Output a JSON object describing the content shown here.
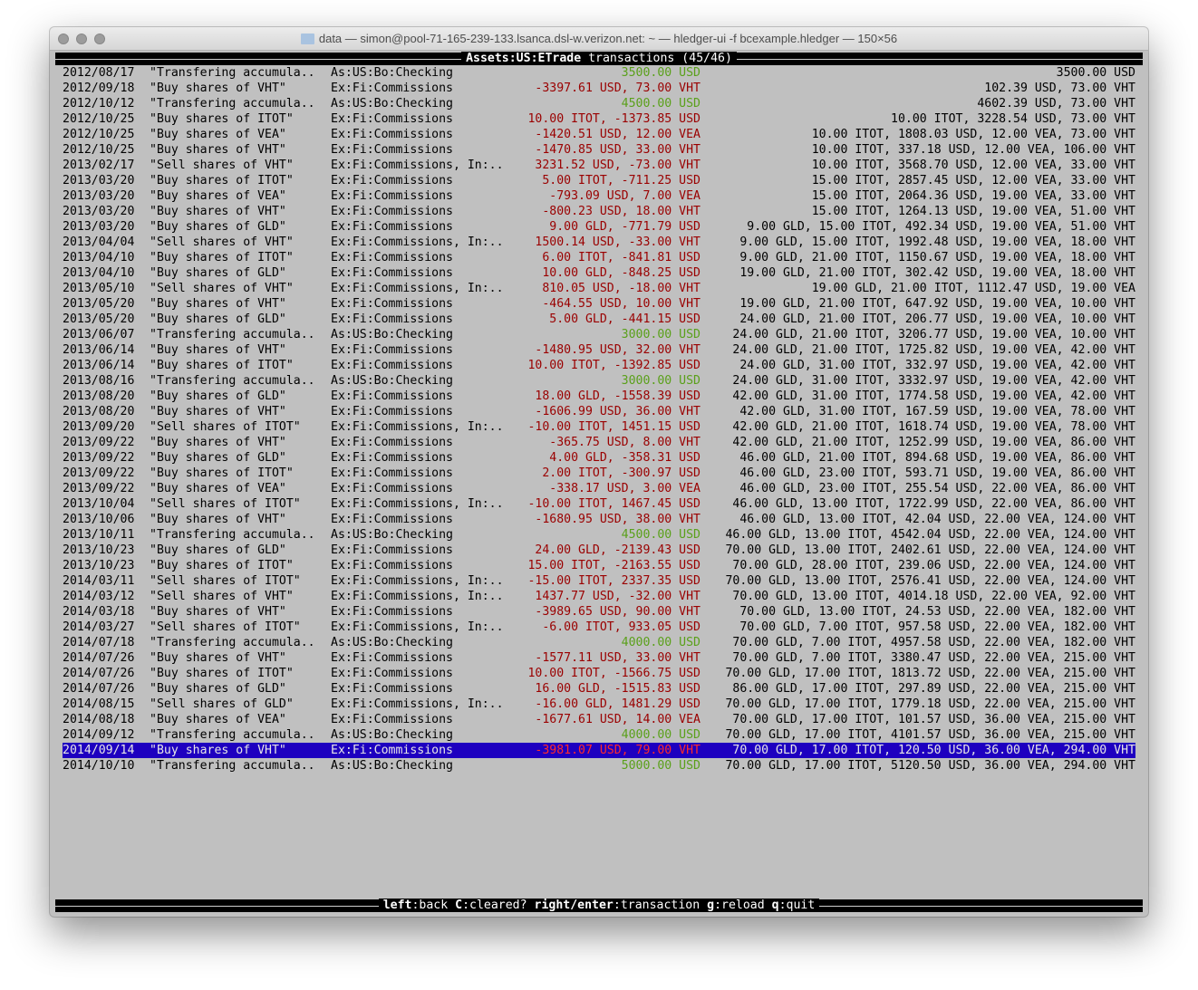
{
  "window": {
    "title": "data — simon@pool-71-165-239-133.lsanca.dsl-w.verizon.net: ~ — hledger-ui -f bcexample.hledger — 150×56",
    "icon": "folder-icon"
  },
  "header": {
    "account": "Assets:US:ETrade",
    "suffix": " transactions (45/46)"
  },
  "colors": {
    "positive": "#5aa01a",
    "negative": "#9a0000",
    "selection": "#1e00c0",
    "background": "#c0c0c0"
  },
  "selected_index": 44,
  "rows": [
    [
      "2012/08/17",
      "\"Transfering accumula..",
      "As:US:Bo:Checking",
      "3500.00 USD",
      "3500.00 USD",
      "pos"
    ],
    [
      "2012/09/18",
      "\"Buy shares of VHT\"",
      "Ex:Fi:Commissions",
      "-3397.61 USD, 73.00 VHT",
      "102.39 USD, 73.00 VHT",
      "neg"
    ],
    [
      "2012/10/12",
      "\"Transfering accumula..",
      "As:US:Bo:Checking",
      "4500.00 USD",
      "4602.39 USD, 73.00 VHT",
      "pos"
    ],
    [
      "2012/10/25",
      "\"Buy shares of ITOT\"",
      "Ex:Fi:Commissions",
      "10.00 ITOT, -1373.85 USD",
      "10.00 ITOT, 3228.54 USD, 73.00 VHT",
      "neg"
    ],
    [
      "2012/10/25",
      "\"Buy shares of VEA\"",
      "Ex:Fi:Commissions",
      "-1420.51 USD, 12.00 VEA",
      "10.00 ITOT, 1808.03 USD, 12.00 VEA, 73.00 VHT",
      "neg"
    ],
    [
      "2012/10/25",
      "\"Buy shares of VHT\"",
      "Ex:Fi:Commissions",
      "-1470.85 USD, 33.00 VHT",
      "10.00 ITOT, 337.18 USD, 12.00 VEA, 106.00 VHT",
      "neg"
    ],
    [
      "2013/02/17",
      "\"Sell shares of VHT\"",
      "Ex:Fi:Commissions, In:..",
      "3231.52 USD, -73.00 VHT",
      "10.00 ITOT, 3568.70 USD, 12.00 VEA, 33.00 VHT",
      "neg"
    ],
    [
      "2013/03/20",
      "\"Buy shares of ITOT\"",
      "Ex:Fi:Commissions",
      "5.00 ITOT, -711.25 USD",
      "15.00 ITOT, 2857.45 USD, 12.00 VEA, 33.00 VHT",
      "neg"
    ],
    [
      "2013/03/20",
      "\"Buy shares of VEA\"",
      "Ex:Fi:Commissions",
      "-793.09 USD, 7.00 VEA",
      "15.00 ITOT, 2064.36 USD, 19.00 VEA, 33.00 VHT",
      "neg"
    ],
    [
      "2013/03/20",
      "\"Buy shares of VHT\"",
      "Ex:Fi:Commissions",
      "-800.23 USD, 18.00 VHT",
      "15.00 ITOT, 1264.13 USD, 19.00 VEA, 51.00 VHT",
      "neg"
    ],
    [
      "2013/03/20",
      "\"Buy shares of GLD\"",
      "Ex:Fi:Commissions",
      "9.00 GLD, -771.79 USD",
      "9.00 GLD, 15.00 ITOT, 492.34 USD, 19.00 VEA, 51.00 VHT",
      "neg"
    ],
    [
      "2013/04/04",
      "\"Sell shares of VHT\"",
      "Ex:Fi:Commissions, In:..",
      "1500.14 USD, -33.00 VHT",
      "9.00 GLD, 15.00 ITOT, 1992.48 USD, 19.00 VEA, 18.00 VHT",
      "neg"
    ],
    [
      "2013/04/10",
      "\"Buy shares of ITOT\"",
      "Ex:Fi:Commissions",
      "6.00 ITOT, -841.81 USD",
      "9.00 GLD, 21.00 ITOT, 1150.67 USD, 19.00 VEA, 18.00 VHT",
      "neg"
    ],
    [
      "2013/04/10",
      "\"Buy shares of GLD\"",
      "Ex:Fi:Commissions",
      "10.00 GLD, -848.25 USD",
      "19.00 GLD, 21.00 ITOT, 302.42 USD, 19.00 VEA, 18.00 VHT",
      "neg"
    ],
    [
      "2013/05/10",
      "\"Sell shares of VHT\"",
      "Ex:Fi:Commissions, In:..",
      "810.05 USD, -18.00 VHT",
      "19.00 GLD, 21.00 ITOT, 1112.47 USD, 19.00 VEA",
      "neg"
    ],
    [
      "2013/05/20",
      "\"Buy shares of VHT\"",
      "Ex:Fi:Commissions",
      "-464.55 USD, 10.00 VHT",
      "19.00 GLD, 21.00 ITOT, 647.92 USD, 19.00 VEA, 10.00 VHT",
      "neg"
    ],
    [
      "2013/05/20",
      "\"Buy shares of GLD\"",
      "Ex:Fi:Commissions",
      "5.00 GLD, -441.15 USD",
      "24.00 GLD, 21.00 ITOT, 206.77 USD, 19.00 VEA, 10.00 VHT",
      "neg"
    ],
    [
      "2013/06/07",
      "\"Transfering accumula..",
      "As:US:Bo:Checking",
      "3000.00 USD",
      "24.00 GLD, 21.00 ITOT, 3206.77 USD, 19.00 VEA, 10.00 VHT",
      "pos"
    ],
    [
      "2013/06/14",
      "\"Buy shares of VHT\"",
      "Ex:Fi:Commissions",
      "-1480.95 USD, 32.00 VHT",
      "24.00 GLD, 21.00 ITOT, 1725.82 USD, 19.00 VEA, 42.00 VHT",
      "neg"
    ],
    [
      "2013/06/14",
      "\"Buy shares of ITOT\"",
      "Ex:Fi:Commissions",
      "10.00 ITOT, -1392.85 USD",
      "24.00 GLD, 31.00 ITOT, 332.97 USD, 19.00 VEA, 42.00 VHT",
      "neg"
    ],
    [
      "2013/08/16",
      "\"Transfering accumula..",
      "As:US:Bo:Checking",
      "3000.00 USD",
      "24.00 GLD, 31.00 ITOT, 3332.97 USD, 19.00 VEA, 42.00 VHT",
      "pos"
    ],
    [
      "2013/08/20",
      "\"Buy shares of GLD\"",
      "Ex:Fi:Commissions",
      "18.00 GLD, -1558.39 USD",
      "42.00 GLD, 31.00 ITOT, 1774.58 USD, 19.00 VEA, 42.00 VHT",
      "neg"
    ],
    [
      "2013/08/20",
      "\"Buy shares of VHT\"",
      "Ex:Fi:Commissions",
      "-1606.99 USD, 36.00 VHT",
      "42.00 GLD, 31.00 ITOT, 167.59 USD, 19.00 VEA, 78.00 VHT",
      "neg"
    ],
    [
      "2013/09/20",
      "\"Sell shares of ITOT\"",
      "Ex:Fi:Commissions, In:..",
      "-10.00 ITOT, 1451.15 USD",
      "42.00 GLD, 21.00 ITOT, 1618.74 USD, 19.00 VEA, 78.00 VHT",
      "neg"
    ],
    [
      "2013/09/22",
      "\"Buy shares of VHT\"",
      "Ex:Fi:Commissions",
      "-365.75 USD, 8.00 VHT",
      "42.00 GLD, 21.00 ITOT, 1252.99 USD, 19.00 VEA, 86.00 VHT",
      "neg"
    ],
    [
      "2013/09/22",
      "\"Buy shares of GLD\"",
      "Ex:Fi:Commissions",
      "4.00 GLD, -358.31 USD",
      "46.00 GLD, 21.00 ITOT, 894.68 USD, 19.00 VEA, 86.00 VHT",
      "neg"
    ],
    [
      "2013/09/22",
      "\"Buy shares of ITOT\"",
      "Ex:Fi:Commissions",
      "2.00 ITOT, -300.97 USD",
      "46.00 GLD, 23.00 ITOT, 593.71 USD, 19.00 VEA, 86.00 VHT",
      "neg"
    ],
    [
      "2013/09/22",
      "\"Buy shares of VEA\"",
      "Ex:Fi:Commissions",
      "-338.17 USD, 3.00 VEA",
      "46.00 GLD, 23.00 ITOT, 255.54 USD, 22.00 VEA, 86.00 VHT",
      "neg"
    ],
    [
      "2013/10/04",
      "\"Sell shares of ITOT\"",
      "Ex:Fi:Commissions, In:..",
      "-10.00 ITOT, 1467.45 USD",
      "46.00 GLD, 13.00 ITOT, 1722.99 USD, 22.00 VEA, 86.00 VHT",
      "neg"
    ],
    [
      "2013/10/06",
      "\"Buy shares of VHT\"",
      "Ex:Fi:Commissions",
      "-1680.95 USD, 38.00 VHT",
      "46.00 GLD, 13.00 ITOT, 42.04 USD, 22.00 VEA, 124.00 VHT",
      "neg"
    ],
    [
      "2013/10/11",
      "\"Transfering accumula..",
      "As:US:Bo:Checking",
      "4500.00 USD",
      "46.00 GLD, 13.00 ITOT, 4542.04 USD, 22.00 VEA, 124.00 VHT",
      "pos"
    ],
    [
      "2013/10/23",
      "\"Buy shares of GLD\"",
      "Ex:Fi:Commissions",
      "24.00 GLD, -2139.43 USD",
      "70.00 GLD, 13.00 ITOT, 2402.61 USD, 22.00 VEA, 124.00 VHT",
      "neg"
    ],
    [
      "2013/10/23",
      "\"Buy shares of ITOT\"",
      "Ex:Fi:Commissions",
      "15.00 ITOT, -2163.55 USD",
      "70.00 GLD, 28.00 ITOT, 239.06 USD, 22.00 VEA, 124.00 VHT",
      "neg"
    ],
    [
      "2014/03/11",
      "\"Sell shares of ITOT\"",
      "Ex:Fi:Commissions, In:..",
      "-15.00 ITOT, 2337.35 USD",
      "70.00 GLD, 13.00 ITOT, 2576.41 USD, 22.00 VEA, 124.00 VHT",
      "neg"
    ],
    [
      "2014/03/12",
      "\"Sell shares of VHT\"",
      "Ex:Fi:Commissions, In:..",
      "1437.77 USD, -32.00 VHT",
      "70.00 GLD, 13.00 ITOT, 4014.18 USD, 22.00 VEA, 92.00 VHT",
      "neg"
    ],
    [
      "2014/03/18",
      "\"Buy shares of VHT\"",
      "Ex:Fi:Commissions",
      "-3989.65 USD, 90.00 VHT",
      "70.00 GLD, 13.00 ITOT, 24.53 USD, 22.00 VEA, 182.00 VHT",
      "neg"
    ],
    [
      "2014/03/27",
      "\"Sell shares of ITOT\"",
      "Ex:Fi:Commissions, In:..",
      "-6.00 ITOT, 933.05 USD",
      "70.00 GLD, 7.00 ITOT, 957.58 USD, 22.00 VEA, 182.00 VHT",
      "neg"
    ],
    [
      "2014/07/18",
      "\"Transfering accumula..",
      "As:US:Bo:Checking",
      "4000.00 USD",
      "70.00 GLD, 7.00 ITOT, 4957.58 USD, 22.00 VEA, 182.00 VHT",
      "pos"
    ],
    [
      "2014/07/26",
      "\"Buy shares of VHT\"",
      "Ex:Fi:Commissions",
      "-1577.11 USD, 33.00 VHT",
      "70.00 GLD, 7.00 ITOT, 3380.47 USD, 22.00 VEA, 215.00 VHT",
      "neg"
    ],
    [
      "2014/07/26",
      "\"Buy shares of ITOT\"",
      "Ex:Fi:Commissions",
      "10.00 ITOT, -1566.75 USD",
      "70.00 GLD, 17.00 ITOT, 1813.72 USD, 22.00 VEA, 215.00 VHT",
      "neg"
    ],
    [
      "2014/07/26",
      "\"Buy shares of GLD\"",
      "Ex:Fi:Commissions",
      "16.00 GLD, -1515.83 USD",
      "86.00 GLD, 17.00 ITOT, 297.89 USD, 22.00 VEA, 215.00 VHT",
      "neg"
    ],
    [
      "2014/08/15",
      "\"Sell shares of GLD\"",
      "Ex:Fi:Commissions, In:..",
      "-16.00 GLD, 1481.29 USD",
      "70.00 GLD, 17.00 ITOT, 1779.18 USD, 22.00 VEA, 215.00 VHT",
      "neg"
    ],
    [
      "2014/08/18",
      "\"Buy shares of VEA\"",
      "Ex:Fi:Commissions",
      "-1677.61 USD, 14.00 VEA",
      "70.00 GLD, 17.00 ITOT, 101.57 USD, 36.00 VEA, 215.00 VHT",
      "neg"
    ],
    [
      "2014/09/12",
      "\"Transfering accumula..",
      "As:US:Bo:Checking",
      "4000.00 USD",
      "70.00 GLD, 17.00 ITOT, 4101.57 USD, 36.00 VEA, 215.00 VHT",
      "pos"
    ],
    [
      "2014/09/14",
      "\"Buy shares of VHT\"",
      "Ex:Fi:Commissions",
      "-3981.07 USD, 79.00 VHT",
      "70.00 GLD, 17.00 ITOT, 120.50 USD, 36.00 VEA, 294.00 VHT",
      "neg"
    ],
    [
      "2014/10/10",
      "\"Transfering accumula..",
      "As:US:Bo:Checking",
      "5000.00 USD",
      "70.00 GLD, 17.00 ITOT, 5120.50 USD, 36.00 VEA, 294.00 VHT",
      "pos"
    ]
  ],
  "footer": {
    "keys": [
      {
        "key": "left",
        "action": "back"
      },
      {
        "key": "C",
        "action": "cleared?"
      },
      {
        "key": "right/enter",
        "action": "transaction"
      },
      {
        "key": "g",
        "action": "reload"
      },
      {
        "key": "q",
        "action": "quit"
      }
    ]
  }
}
